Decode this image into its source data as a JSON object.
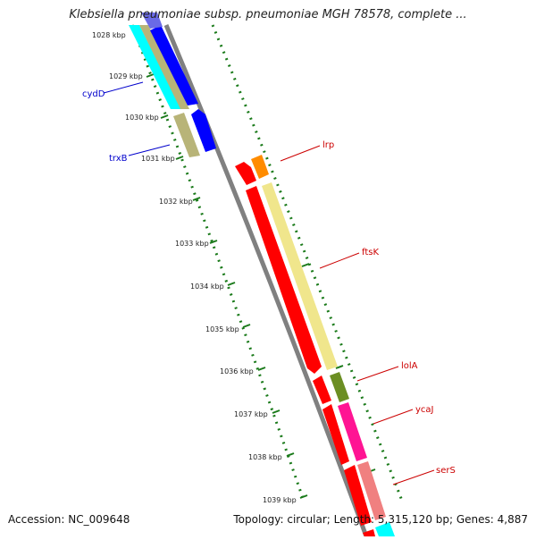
{
  "title": "Klebsiella pneumoniae subsp. pneumoniae MGH 78578, complete ...",
  "footer": {
    "accession": "Accession: NC_009648",
    "summary": "Topology: circular; Length: 5,315,120 bp; Genes: 4,887"
  },
  "scale_labels": [
    "1028 kbp",
    "1029 kbp",
    "1030 kbp",
    "1031 kbp",
    "1032 kbp",
    "1033 kbp",
    "1034 kbp",
    "1035 kbp",
    "1036 kbp",
    "1037 kbp",
    "1038 kbp",
    "1039 kbp"
  ],
  "genes": [
    {
      "name": "cydD",
      "color": "#0000cc"
    },
    {
      "name": "trxB",
      "color": "#0000cc"
    },
    {
      "name": "lrp",
      "color": "#cc0000"
    },
    {
      "name": "ftsK",
      "color": "#cc0000"
    },
    {
      "name": "lolA",
      "color": "#cc0000"
    },
    {
      "name": "ycaJ",
      "color": "#cc0000"
    },
    {
      "name": "serS",
      "color": "#cc0000"
    }
  ],
  "colors": {
    "backbone": "#808080",
    "tick_green": "#1a7a1a",
    "cds_red": "#ff0000",
    "cyan": "#00ffff",
    "blue": "#0000ff",
    "khaki": "#b8b478",
    "pale_yellow": "#f0e68c",
    "orange": "#ff8c00",
    "olive": "#6b8e23",
    "magenta": "#ff1493",
    "salmon": "#f08080"
  }
}
